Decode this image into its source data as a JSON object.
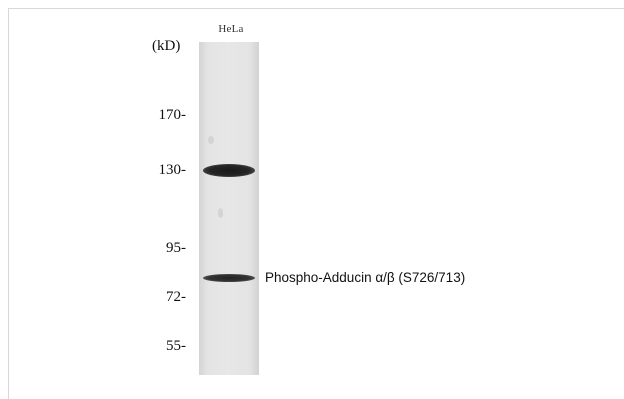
{
  "lane_label": "HeLa",
  "unit_label": "(kD)",
  "markers": [
    "170-",
    "130-",
    "95-",
    "72-",
    "55-"
  ],
  "band_label": "Phospho-Adducin α/β (S726/713)"
}
